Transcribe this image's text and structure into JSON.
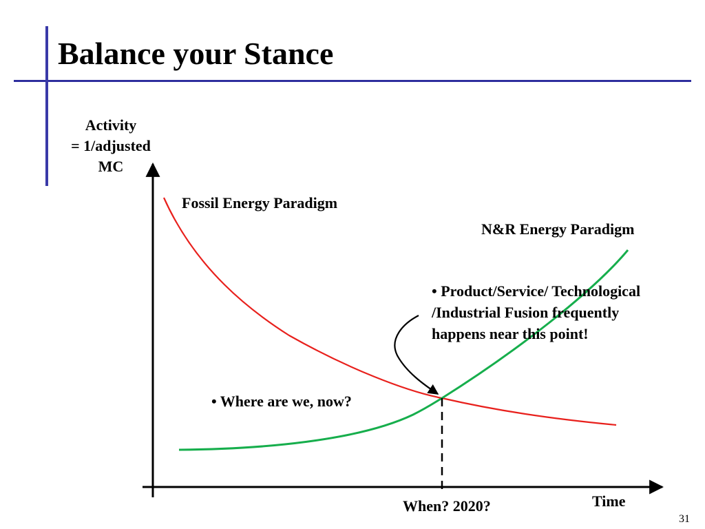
{
  "slide": {
    "title": "Balance your Stance",
    "page_number": "31",
    "accent_color": "#2e2e9e"
  },
  "diagram": {
    "y_axis_label_lines": [
      "Activity",
      "= 1/adjusted",
      "MC"
    ],
    "x_axis_label": "Time",
    "curves": [
      {
        "name": "Fossil Energy Paradigm",
        "trend": "decreasing",
        "color": "#e8201c"
      },
      {
        "name": "N&R Energy Paradigm",
        "trend": "increasing",
        "color": "#16ae4c"
      }
    ],
    "crossing_marker": "When? 2020?",
    "question_note": "• Where are we, now?",
    "callout_text": "• Product/Service/ Technological /Industrial Fusion frequently happens near this point!"
  }
}
